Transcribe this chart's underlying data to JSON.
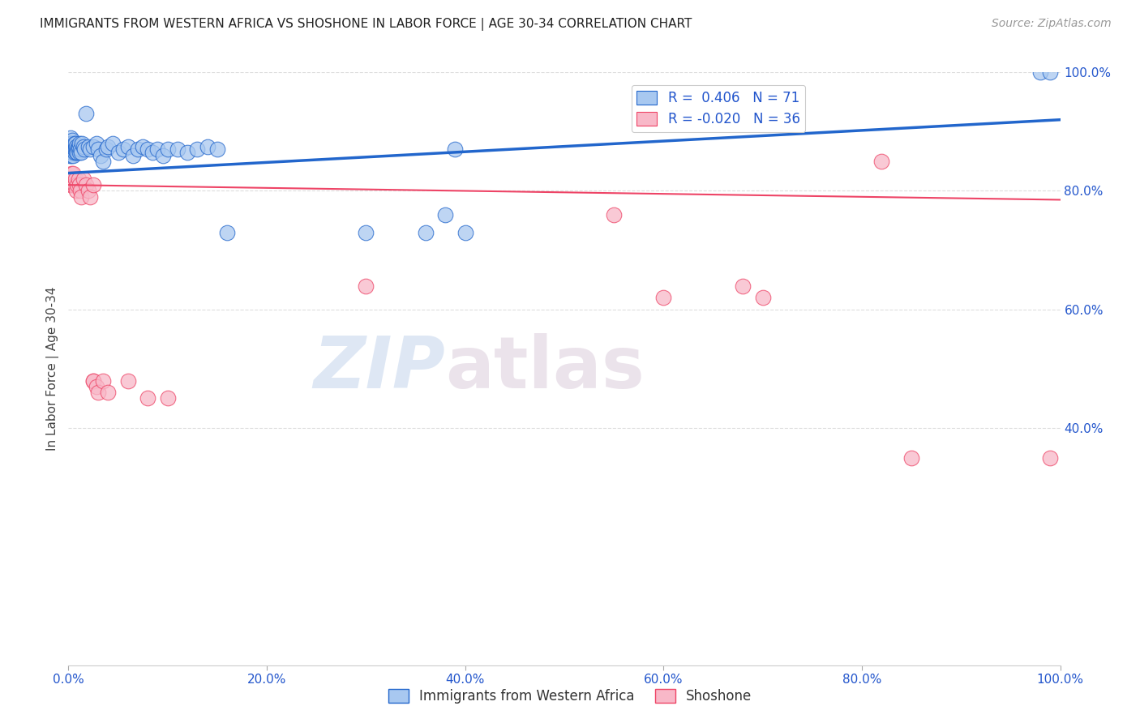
{
  "title": "IMMIGRANTS FROM WESTERN AFRICA VS SHOSHONE IN LABOR FORCE | AGE 30-34 CORRELATION CHART",
  "source": "Source: ZipAtlas.com",
  "ylabel": "In Labor Force | Age 30-34",
  "xlim": [
    0,
    1.0
  ],
  "ylim": [
    0,
    1.0
  ],
  "xtick_labels": [
    "0.0%",
    "20.0%",
    "40.0%",
    "60.0%",
    "80.0%",
    "100.0%"
  ],
  "xtick_positions": [
    0.0,
    0.2,
    0.4,
    0.6,
    0.8,
    1.0
  ],
  "ytick_labels_right": [
    "100.0%",
    "80.0%",
    "60.0%",
    "40.0%"
  ],
  "ytick_positions_right": [
    1.0,
    0.8,
    0.6,
    0.4
  ],
  "r_blue": 0.406,
  "n_blue": 71,
  "r_pink": -0.02,
  "n_pink": 36,
  "blue_color": "#A8C8F0",
  "pink_color": "#F8B8C8",
  "trendline_blue_color": "#2266CC",
  "trendline_pink_color": "#EE4466",
  "legend_label_blue": "Immigrants from Western Africa",
  "legend_label_pink": "Shoshone",
  "title_color": "#222222",
  "source_color": "#999999",
  "axis_color": "#2255CC",
  "grid_color": "#DDDDDD",
  "blue_points_x": [
    0.001,
    0.001,
    0.001,
    0.002,
    0.002,
    0.002,
    0.003,
    0.003,
    0.003,
    0.003,
    0.004,
    0.004,
    0.004,
    0.004,
    0.005,
    0.005,
    0.005,
    0.006,
    0.006,
    0.006,
    0.007,
    0.007,
    0.007,
    0.008,
    0.008,
    0.009,
    0.009,
    0.01,
    0.01,
    0.011,
    0.011,
    0.012,
    0.013,
    0.014,
    0.015,
    0.016,
    0.018,
    0.02,
    0.022,
    0.025,
    0.028,
    0.03,
    0.032,
    0.035,
    0.038,
    0.04,
    0.045,
    0.05,
    0.055,
    0.06,
    0.065,
    0.07,
    0.075,
    0.08,
    0.085,
    0.09,
    0.095,
    0.1,
    0.11,
    0.12,
    0.13,
    0.14,
    0.15,
    0.16,
    0.3,
    0.36,
    0.38,
    0.39,
    0.4,
    0.98,
    0.99
  ],
  "blue_points_y": [
    0.87,
    0.88,
    0.86,
    0.89,
    0.88,
    0.87,
    0.86,
    0.87,
    0.88,
    0.875,
    0.865,
    0.875,
    0.885,
    0.87,
    0.86,
    0.875,
    0.87,
    0.865,
    0.88,
    0.87,
    0.875,
    0.88,
    0.87,
    0.865,
    0.875,
    0.87,
    0.865,
    0.875,
    0.87,
    0.865,
    0.88,
    0.87,
    0.865,
    0.88,
    0.875,
    0.87,
    0.93,
    0.875,
    0.87,
    0.875,
    0.88,
    0.87,
    0.86,
    0.85,
    0.87,
    0.875,
    0.88,
    0.865,
    0.87,
    0.875,
    0.86,
    0.87,
    0.875,
    0.87,
    0.865,
    0.87,
    0.86,
    0.87,
    0.87,
    0.865,
    0.87,
    0.875,
    0.87,
    0.73,
    0.73,
    0.73,
    0.76,
    0.87,
    0.73,
    1.0,
    1.0
  ],
  "pink_points_x": [
    0.001,
    0.002,
    0.003,
    0.004,
    0.004,
    0.005,
    0.006,
    0.007,
    0.008,
    0.009,
    0.01,
    0.011,
    0.012,
    0.013,
    0.015,
    0.018,
    0.02,
    0.022,
    0.025,
    0.025,
    0.025,
    0.028,
    0.03,
    0.035,
    0.04,
    0.06,
    0.08,
    0.1,
    0.3,
    0.55,
    0.6,
    0.68,
    0.7,
    0.82,
    0.85,
    0.99
  ],
  "pink_points_y": [
    0.82,
    0.81,
    0.83,
    0.82,
    0.81,
    0.83,
    0.81,
    0.82,
    0.8,
    0.81,
    0.82,
    0.81,
    0.8,
    0.79,
    0.82,
    0.81,
    0.8,
    0.79,
    0.81,
    0.48,
    0.48,
    0.47,
    0.46,
    0.48,
    0.46,
    0.48,
    0.45,
    0.45,
    0.64,
    0.76,
    0.62,
    0.64,
    0.62,
    0.85,
    0.35,
    0.35
  ]
}
